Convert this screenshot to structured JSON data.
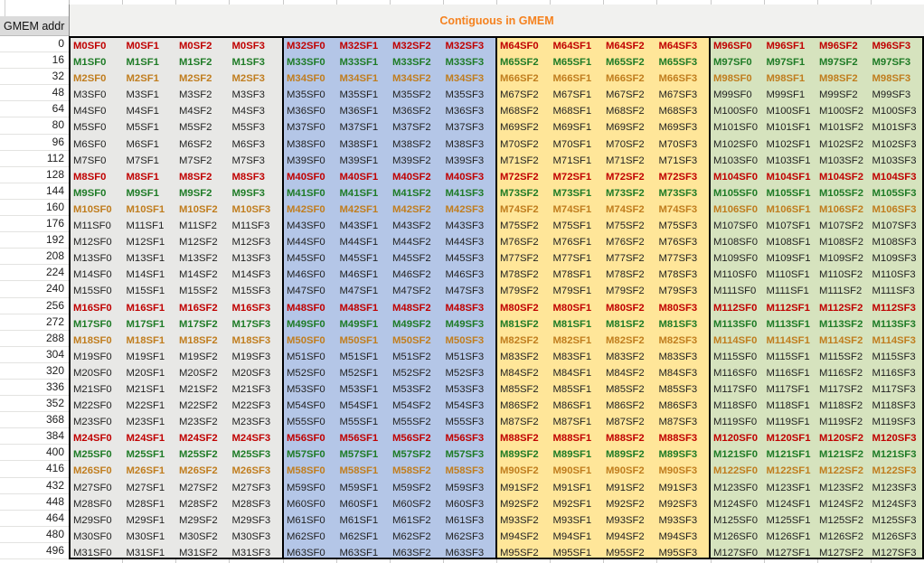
{
  "header": {
    "corner_label": "GMEM addr",
    "banner_label": "Contiguous in GMEM",
    "banner_color": "#f5821f"
  },
  "colors": {
    "group_bg": [
      "#e8e8e6",
      "#b4c6e7",
      "#ffe699",
      "#d6e3be"
    ],
    "row_text": {
      "red": "#c00000",
      "green": "#1e7b26",
      "orange": "#c07d1e",
      "black": "#1f1f1f"
    }
  },
  "table": {
    "group_count": 4,
    "columns_per_group": 4,
    "rows": [
      {
        "addr": "0",
        "color": "red",
        "cells": [
          "M0SF0",
          "M0SF1",
          "M0SF2",
          "M0SF3",
          "M32SF0",
          "M32SF1",
          "M32SF2",
          "M32SF3",
          "M64SF0",
          "M64SF1",
          "M64SF2",
          "M64SF3",
          "M96SF0",
          "M96SF1",
          "M96SF2",
          "M96SF3"
        ]
      },
      {
        "addr": "16",
        "color": "green",
        "cells": [
          "M1SF0",
          "M1SF1",
          "M1SF2",
          "M1SF3",
          "M33SF0",
          "M33SF1",
          "M33SF2",
          "M33SF3",
          "M65SF2",
          "M65SF1",
          "M65SF2",
          "M65SF3",
          "M97SF0",
          "M97SF1",
          "M97SF2",
          "M97SF3"
        ]
      },
      {
        "addr": "32",
        "color": "orange",
        "cells": [
          "M2SF0",
          "M2SF1",
          "M2SF2",
          "M2SF3",
          "M34SF0",
          "M34SF1",
          "M34SF2",
          "M34SF3",
          "M66SF2",
          "M66SF1",
          "M66SF2",
          "M66SF3",
          "M98SF0",
          "M98SF1",
          "M98SF2",
          "M98SF3"
        ]
      },
      {
        "addr": "48",
        "color": "black",
        "cells": [
          "M3SF0",
          "M3SF1",
          "M3SF2",
          "M3SF3",
          "M35SF0",
          "M35SF1",
          "M35SF2",
          "M35SF3",
          "M67SF2",
          "M67SF1",
          "M67SF2",
          "M67SF3",
          "M99SF0",
          "M99SF1",
          "M99SF2",
          "M99SF3"
        ]
      },
      {
        "addr": "64",
        "color": "black",
        "cells": [
          "M4SF0",
          "M4SF1",
          "M4SF2",
          "M4SF3",
          "M36SF0",
          "M36SF1",
          "M36SF2",
          "M36SF3",
          "M68SF2",
          "M68SF1",
          "M68SF2",
          "M68SF3",
          "M100SF0",
          "M100SF1",
          "M100SF2",
          "M100SF3"
        ]
      },
      {
        "addr": "80",
        "color": "black",
        "cells": [
          "M5SF0",
          "M5SF1",
          "M5SF2",
          "M5SF3",
          "M37SF0",
          "M37SF1",
          "M37SF2",
          "M37SF3",
          "M69SF2",
          "M69SF1",
          "M69SF2",
          "M69SF3",
          "M101SF0",
          "M101SF1",
          "M101SF2",
          "M101SF3"
        ]
      },
      {
        "addr": "96",
        "color": "black",
        "cells": [
          "M6SF0",
          "M6SF1",
          "M6SF2",
          "M6SF3",
          "M38SF0",
          "M38SF1",
          "M38SF2",
          "M38SF3",
          "M70SF2",
          "M70SF1",
          "M70SF2",
          "M70SF3",
          "M102SF0",
          "M102SF1",
          "M102SF2",
          "M102SF3"
        ]
      },
      {
        "addr": "112",
        "color": "black",
        "cells": [
          "M7SF0",
          "M7SF1",
          "M7SF2",
          "M7SF3",
          "M39SF0",
          "M39SF1",
          "M39SF2",
          "M39SF3",
          "M71SF2",
          "M71SF1",
          "M71SF2",
          "M71SF3",
          "M103SF0",
          "M103SF1",
          "M103SF2",
          "M103SF3"
        ]
      },
      {
        "addr": "128",
        "color": "red",
        "cells": [
          "M8SF0",
          "M8SF1",
          "M8SF2",
          "M8SF3",
          "M40SF0",
          "M40SF1",
          "M40SF2",
          "M40SF3",
          "M72SF2",
          "M72SF1",
          "M72SF2",
          "M72SF3",
          "M104SF0",
          "M104SF1",
          "M104SF2",
          "M104SF3"
        ]
      },
      {
        "addr": "144",
        "color": "green",
        "cells": [
          "M9SF0",
          "M9SF1",
          "M9SF2",
          "M9SF3",
          "M41SF0",
          "M41SF1",
          "M41SF2",
          "M41SF3",
          "M73SF2",
          "M73SF1",
          "M73SF2",
          "M73SF3",
          "M105SF0",
          "M105SF1",
          "M105SF2",
          "M105SF3"
        ]
      },
      {
        "addr": "160",
        "color": "orange",
        "cells": [
          "M10SF0",
          "M10SF1",
          "M10SF2",
          "M10SF3",
          "M42SF0",
          "M42SF1",
          "M42SF2",
          "M42SF3",
          "M74SF2",
          "M74SF1",
          "M74SF2",
          "M74SF3",
          "M106SF0",
          "M106SF1",
          "M106SF2",
          "M106SF3"
        ]
      },
      {
        "addr": "176",
        "color": "black",
        "cells": [
          "M11SF0",
          "M11SF1",
          "M11SF2",
          "M11SF3",
          "M43SF0",
          "M43SF1",
          "M43SF2",
          "M43SF3",
          "M75SF2",
          "M75SF1",
          "M75SF2",
          "M75SF3",
          "M107SF0",
          "M107SF1",
          "M107SF2",
          "M107SF3"
        ]
      },
      {
        "addr": "192",
        "color": "black",
        "cells": [
          "M12SF0",
          "M12SF1",
          "M12SF2",
          "M12SF3",
          "M44SF0",
          "M44SF1",
          "M44SF2",
          "M44SF3",
          "M76SF2",
          "M76SF1",
          "M76SF2",
          "M76SF3",
          "M108SF0",
          "M108SF1",
          "M108SF2",
          "M108SF3"
        ]
      },
      {
        "addr": "208",
        "color": "black",
        "cells": [
          "M13SF0",
          "M13SF1",
          "M13SF2",
          "M13SF3",
          "M45SF0",
          "M45SF1",
          "M45SF2",
          "M45SF3",
          "M77SF2",
          "M77SF1",
          "M77SF2",
          "M77SF3",
          "M109SF0",
          "M109SF1",
          "M109SF2",
          "M109SF3"
        ]
      },
      {
        "addr": "224",
        "color": "black",
        "cells": [
          "M14SF0",
          "M14SF1",
          "M14SF2",
          "M14SF3",
          "M46SF0",
          "M46SF1",
          "M46SF2",
          "M46SF3",
          "M78SF2",
          "M78SF1",
          "M78SF2",
          "M78SF3",
          "M110SF0",
          "M110SF1",
          "M110SF2",
          "M110SF3"
        ]
      },
      {
        "addr": "240",
        "color": "black",
        "cells": [
          "M15SF0",
          "M15SF1",
          "M15SF2",
          "M15SF3",
          "M47SF0",
          "M47SF1",
          "M47SF2",
          "M47SF3",
          "M79SF2",
          "M79SF1",
          "M79SF2",
          "M79SF3",
          "M111SF0",
          "M111SF1",
          "M111SF2",
          "M111SF3"
        ]
      },
      {
        "addr": "256",
        "color": "red",
        "cells": [
          "M16SF0",
          "M16SF1",
          "M16SF2",
          "M16SF3",
          "M48SF0",
          "M48SF1",
          "M48SF2",
          "M48SF3",
          "M80SF2",
          "M80SF1",
          "M80SF2",
          "M80SF3",
          "M112SF0",
          "M112SF1",
          "M112SF2",
          "M112SF3"
        ]
      },
      {
        "addr": "272",
        "color": "green",
        "cells": [
          "M17SF0",
          "M17SF1",
          "M17SF2",
          "M17SF3",
          "M49SF0",
          "M49SF1",
          "M49SF2",
          "M49SF3",
          "M81SF2",
          "M81SF1",
          "M81SF2",
          "M81SF3",
          "M113SF0",
          "M113SF1",
          "M113SF2",
          "M113SF3"
        ]
      },
      {
        "addr": "288",
        "color": "orange",
        "cells": [
          "M18SF0",
          "M18SF1",
          "M18SF2",
          "M18SF3",
          "M50SF0",
          "M50SF1",
          "M50SF2",
          "M50SF3",
          "M82SF2",
          "M82SF1",
          "M82SF2",
          "M82SF3",
          "M114SF0",
          "M114SF1",
          "M114SF2",
          "M114SF3"
        ]
      },
      {
        "addr": "304",
        "color": "black",
        "cells": [
          "M19SF0",
          "M19SF1",
          "M19SF2",
          "M19SF3",
          "M51SF0",
          "M51SF1",
          "M51SF2",
          "M51SF3",
          "M83SF2",
          "M83SF1",
          "M83SF2",
          "M83SF3",
          "M115SF0",
          "M115SF1",
          "M115SF2",
          "M115SF3"
        ]
      },
      {
        "addr": "320",
        "color": "black",
        "cells": [
          "M20SF0",
          "M20SF1",
          "M20SF2",
          "M20SF3",
          "M52SF0",
          "M52SF1",
          "M52SF2",
          "M52SF3",
          "M84SF2",
          "M84SF1",
          "M84SF2",
          "M84SF3",
          "M116SF0",
          "M116SF1",
          "M116SF2",
          "M116SF3"
        ]
      },
      {
        "addr": "336",
        "color": "black",
        "cells": [
          "M21SF0",
          "M21SF1",
          "M21SF2",
          "M21SF3",
          "M53SF0",
          "M53SF1",
          "M53SF2",
          "M53SF3",
          "M85SF2",
          "M85SF1",
          "M85SF2",
          "M85SF3",
          "M117SF0",
          "M117SF1",
          "M117SF2",
          "M117SF3"
        ]
      },
      {
        "addr": "352",
        "color": "black",
        "cells": [
          "M22SF0",
          "M22SF1",
          "M22SF2",
          "M22SF3",
          "M54SF0",
          "M54SF1",
          "M54SF2",
          "M54SF3",
          "M86SF2",
          "M86SF1",
          "M86SF2",
          "M86SF3",
          "M118SF0",
          "M118SF1",
          "M118SF2",
          "M118SF3"
        ]
      },
      {
        "addr": "368",
        "color": "black",
        "cells": [
          "M23SF0",
          "M23SF1",
          "M23SF2",
          "M23SF3",
          "M55SF0",
          "M55SF1",
          "M55SF2",
          "M55SF3",
          "M87SF2",
          "M87SF1",
          "M87SF2",
          "M87SF3",
          "M119SF0",
          "M119SF1",
          "M119SF2",
          "M119SF3"
        ]
      },
      {
        "addr": "384",
        "color": "red",
        "cells": [
          "M24SF0",
          "M24SF1",
          "M24SF2",
          "M24SF3",
          "M56SF0",
          "M56SF1",
          "M56SF2",
          "M56SF3",
          "M88SF2",
          "M88SF1",
          "M88SF2",
          "M88SF3",
          "M120SF0",
          "M120SF1",
          "M120SF2",
          "M120SF3"
        ]
      },
      {
        "addr": "400",
        "color": "green",
        "cells": [
          "M25SF0",
          "M25SF1",
          "M25SF2",
          "M25SF3",
          "M57SF0",
          "M57SF1",
          "M57SF2",
          "M57SF3",
          "M89SF2",
          "M89SF1",
          "M89SF2",
          "M89SF3",
          "M121SF0",
          "M121SF1",
          "M121SF2",
          "M121SF3"
        ]
      },
      {
        "addr": "416",
        "color": "orange",
        "cells": [
          "M26SF0",
          "M26SF1",
          "M26SF2",
          "M26SF3",
          "M58SF0",
          "M58SF1",
          "M58SF2",
          "M58SF3",
          "M90SF2",
          "M90SF1",
          "M90SF2",
          "M90SF3",
          "M122SF0",
          "M122SF1",
          "M122SF2",
          "M122SF3"
        ]
      },
      {
        "addr": "432",
        "color": "black",
        "cells": [
          "M27SF0",
          "M27SF1",
          "M27SF2",
          "M27SF3",
          "M59SF0",
          "M59SF1",
          "M59SF2",
          "M59SF3",
          "M91SF2",
          "M91SF1",
          "M91SF2",
          "M91SF3",
          "M123SF0",
          "M123SF1",
          "M123SF2",
          "M123SF3"
        ]
      },
      {
        "addr": "448",
        "color": "black",
        "cells": [
          "M28SF0",
          "M28SF1",
          "M28SF2",
          "M28SF3",
          "M60SF0",
          "M60SF1",
          "M60SF2",
          "M60SF3",
          "M92SF2",
          "M92SF1",
          "M92SF2",
          "M92SF3",
          "M124SF0",
          "M124SF1",
          "M124SF2",
          "M124SF3"
        ]
      },
      {
        "addr": "464",
        "color": "black",
        "cells": [
          "M29SF0",
          "M29SF1",
          "M29SF2",
          "M29SF3",
          "M61SF0",
          "M61SF1",
          "M61SF2",
          "M61SF3",
          "M93SF2",
          "M93SF1",
          "M93SF2",
          "M93SF3",
          "M125SF0",
          "M125SF1",
          "M125SF2",
          "M125SF3"
        ]
      },
      {
        "addr": "480",
        "color": "black",
        "cells": [
          "M30SF0",
          "M30SF1",
          "M30SF2",
          "M30SF3",
          "M62SF0",
          "M62SF1",
          "M62SF2",
          "M62SF3",
          "M94SF2",
          "M94SF1",
          "M94SF2",
          "M94SF3",
          "M126SF0",
          "M126SF1",
          "M126SF2",
          "M126SF3"
        ]
      },
      {
        "addr": "496",
        "color": "black",
        "cells": [
          "M31SF0",
          "M31SF1",
          "M31SF2",
          "M31SF3",
          "M63SF0",
          "M63SF1",
          "M63SF2",
          "M63SF3",
          "M95SF2",
          "M95SF1",
          "M95SF2",
          "M95SF3",
          "M127SF0",
          "M127SF1",
          "M127SF2",
          "M127SF3"
        ]
      }
    ]
  }
}
